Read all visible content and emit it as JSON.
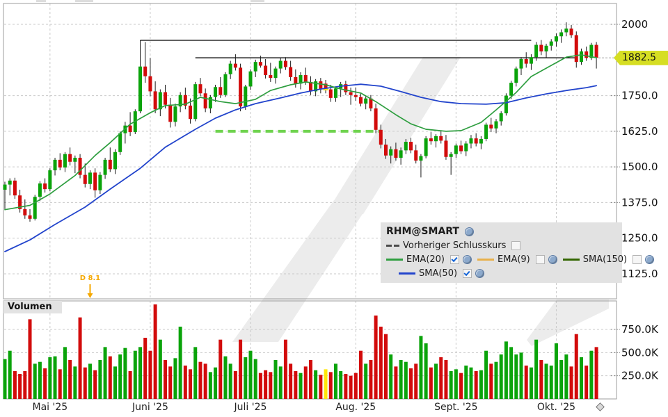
{
  "legend": {
    "symbol": "RHM@SMART",
    "items": [
      {
        "label": "Vorheriger Schlusskurs",
        "checked": false
      },
      {
        "label": "EMA(20)",
        "checked": true
      },
      {
        "label": "EMA(9)",
        "checked": false
      },
      {
        "label": "SMA(150)",
        "checked": false
      },
      {
        "label": "SMA(50)",
        "checked": true
      }
    ]
  },
  "volume_panel": {
    "label": "Volumen"
  },
  "chart_data": {
    "type": "candlestick",
    "title": "RHM@SMART daily chart with volume",
    "x_axis": {
      "month_labels": [
        "Mai '25",
        "Juni '25",
        "Juli '25",
        "Aug. '25",
        "Sept. '25",
        "Okt. '25"
      ],
      "month_start_indices": [
        9,
        29,
        49,
        70,
        90,
        110
      ]
    },
    "y_axis": {
      "tick_prices": [
        2000,
        1750,
        1625,
        1500,
        1375,
        1250,
        1125
      ],
      "tick_labels": [
        "2000",
        "1750.0",
        "1625.0",
        "1500.0",
        "1375.0",
        "1250.0",
        "1125.0"
      ],
      "last_price": 1882.5,
      "last_price_label": "1882.5"
    },
    "volume_axis": {
      "tick_values_k": [
        750,
        500,
        250
      ],
      "tick_labels": [
        "750.0K",
        "500.0K",
        "250.0K"
      ]
    },
    "dividend_marker": {
      "index": 17,
      "label": "D 8.1"
    },
    "highlight_index": 64,
    "resistance_lines": [
      {
        "price": 1944,
        "from_index": 27,
        "to_index": 105
      },
      {
        "price": 1882.5,
        "from_index": 38,
        "to_index": 114
      }
    ],
    "support_dashed_line": {
      "price": 1625,
      "from_index": 42,
      "to_index": 75
    },
    "candles": [
      [
        1420,
        1448,
        1352,
        1438
      ],
      [
        1438,
        1460,
        1400,
        1452
      ],
      [
        1452,
        1462,
        1388,
        1400
      ],
      [
        1400,
        1420,
        1340,
        1352
      ],
      [
        1352,
        1386,
        1318,
        1330
      ],
      [
        1330,
        1352,
        1308,
        1318
      ],
      [
        1318,
        1402,
        1312,
        1395
      ],
      [
        1395,
        1450,
        1380,
        1442
      ],
      [
        1442,
        1460,
        1410,
        1422
      ],
      [
        1422,
        1495,
        1415,
        1488
      ],
      [
        1488,
        1532,
        1470,
        1525
      ],
      [
        1525,
        1548,
        1488,
        1498
      ],
      [
        1498,
        1552,
        1482,
        1545
      ],
      [
        1545,
        1568,
        1505,
        1518
      ],
      [
        1518,
        1540,
        1478,
        1532
      ],
      [
        1532,
        1545,
        1460,
        1472
      ],
      [
        1472,
        1512,
        1428,
        1440
      ],
      [
        1440,
        1488,
        1422,
        1480
      ],
      [
        1480,
        1495,
        1392,
        1418
      ],
      [
        1418,
        1482,
        1405,
        1472
      ],
      [
        1472,
        1532,
        1458,
        1525
      ],
      [
        1525,
        1568,
        1482,
        1492
      ],
      [
        1492,
        1562,
        1475,
        1552
      ],
      [
        1552,
        1625,
        1542,
        1618
      ],
      [
        1618,
        1658,
        1582,
        1645
      ],
      [
        1645,
        1692,
        1608,
        1622
      ],
      [
        1622,
        1702,
        1615,
        1695
      ],
      [
        1695,
        1944,
        1688,
        1852
      ],
      [
        1852,
        1938,
        1795,
        1818
      ],
      [
        1818,
        1882,
        1748,
        1765
      ],
      [
        1765,
        1800,
        1688,
        1702
      ],
      [
        1702,
        1772,
        1678,
        1762
      ],
      [
        1762,
        1788,
        1705,
        1718
      ],
      [
        1718,
        1742,
        1638,
        1658
      ],
      [
        1658,
        1722,
        1642,
        1712
      ],
      [
        1712,
        1762,
        1692,
        1752
      ],
      [
        1752,
        1778,
        1702,
        1715
      ],
      [
        1715,
        1740,
        1652,
        1668
      ],
      [
        1668,
        1798,
        1660,
        1790
      ],
      [
        1790,
        1812,
        1748,
        1758
      ],
      [
        1758,
        1775,
        1692,
        1705
      ],
      [
        1705,
        1752,
        1688,
        1745
      ],
      [
        1745,
        1788,
        1728,
        1780
      ],
      [
        1780,
        1815,
        1742,
        1752
      ],
      [
        1752,
        1832,
        1745,
        1825
      ],
      [
        1825,
        1872,
        1808,
        1862
      ],
      [
        1862,
        1895,
        1838,
        1848
      ],
      [
        1848,
        1862,
        1695,
        1712
      ],
      [
        1712,
        1788,
        1700,
        1782
      ],
      [
        1782,
        1842,
        1770,
        1835
      ],
      [
        1835,
        1876,
        1815,
        1868
      ],
      [
        1868,
        1890,
        1848,
        1855
      ],
      [
        1855,
        1878,
        1810,
        1822
      ],
      [
        1822,
        1865,
        1798,
        1812
      ],
      [
        1812,
        1852,
        1792,
        1845
      ],
      [
        1845,
        1882,
        1828,
        1872
      ],
      [
        1872,
        1885,
        1840,
        1850
      ],
      [
        1850,
        1872,
        1802,
        1815
      ],
      [
        1815,
        1842,
        1778,
        1792
      ],
      [
        1792,
        1832,
        1772,
        1822
      ],
      [
        1822,
        1848,
        1788,
        1798
      ],
      [
        1798,
        1818,
        1752,
        1765
      ],
      [
        1765,
        1808,
        1748,
        1800
      ],
      [
        1800,
        1812,
        1758,
        1772
      ],
      [
        1792,
        1805,
        1758,
        1772
      ],
      [
        1772,
        1788,
        1728,
        1742
      ],
      [
        1742,
        1782,
        1728,
        1775
      ],
      [
        1775,
        1798,
        1745,
        1790
      ],
      [
        1790,
        1802,
        1752,
        1762
      ],
      [
        1762,
        1778,
        1718,
        1752
      ],
      [
        1752,
        1778,
        1732,
        1745
      ],
      [
        1745,
        1760,
        1712,
        1722
      ],
      [
        1722,
        1748,
        1702,
        1740
      ],
      [
        1740,
        1752,
        1695,
        1705
      ],
      [
        1705,
        1722,
        1618,
        1630
      ],
      [
        1630,
        1648,
        1565,
        1578
      ],
      [
        1578,
        1598,
        1528,
        1540
      ],
      [
        1540,
        1572,
        1512,
        1562
      ],
      [
        1562,
        1585,
        1522,
        1532
      ],
      [
        1532,
        1568,
        1508,
        1558
      ],
      [
        1558,
        1598,
        1545,
        1588
      ],
      [
        1588,
        1602,
        1548,
        1558
      ],
      [
        1558,
        1578,
        1512,
        1522
      ],
      [
        1522,
        1545,
        1463,
        1538
      ],
      [
        1538,
        1608,
        1530,
        1600
      ],
      [
        1600,
        1622,
        1578,
        1590
      ],
      [
        1590,
        1615,
        1568,
        1608
      ],
      [
        1608,
        1628,
        1582,
        1592
      ],
      [
        1592,
        1612,
        1525,
        1535
      ],
      [
        1535,
        1552,
        1472,
        1545
      ],
      [
        1545,
        1582,
        1532,
        1575
      ],
      [
        1575,
        1592,
        1545,
        1555
      ],
      [
        1555,
        1590,
        1538,
        1582
      ],
      [
        1582,
        1612,
        1565,
        1600
      ],
      [
        1600,
        1618,
        1572,
        1582
      ],
      [
        1582,
        1608,
        1562,
        1598
      ],
      [
        1598,
        1655,
        1590,
        1648
      ],
      [
        1648,
        1672,
        1622,
        1635
      ],
      [
        1635,
        1668,
        1618,
        1660
      ],
      [
        1660,
        1695,
        1645,
        1688
      ],
      [
        1688,
        1758,
        1680,
        1750
      ],
      [
        1750,
        1802,
        1738,
        1795
      ],
      [
        1795,
        1852,
        1782,
        1845
      ],
      [
        1845,
        1885,
        1822,
        1878
      ],
      [
        1878,
        1902,
        1848,
        1862
      ],
      [
        1862,
        1895,
        1840,
        1885
      ],
      [
        1885,
        1938,
        1872,
        1928
      ],
      [
        1928,
        1945,
        1892,
        1905
      ],
      [
        1905,
        1932,
        1882,
        1925
      ],
      [
        1925,
        1948,
        1908,
        1940
      ],
      [
        1940,
        1968,
        1922,
        1958
      ],
      [
        1958,
        1982,
        1935,
        1972
      ],
      [
        1972,
        2007,
        1958,
        1985
      ],
      [
        1985,
        1998,
        1952,
        1962
      ],
      [
        1962,
        1975,
        1848,
        1868
      ],
      [
        1868,
        1915,
        1858,
        1905
      ],
      [
        1905,
        1922,
        1872,
        1882
      ],
      [
        1882,
        1935,
        1875,
        1928
      ],
      [
        1928,
        1938,
        1845,
        1882.5
      ]
    ],
    "volumes_k": [
      430,
      520,
      300,
      270,
      300,
      860,
      380,
      400,
      330,
      450,
      460,
      320,
      560,
      420,
      350,
      880,
      340,
      380,
      310,
      420,
      560,
      460,
      350,
      480,
      550,
      300,
      520,
      560,
      660,
      520,
      1020,
      640,
      420,
      350,
      440,
      780,
      360,
      320,
      560,
      400,
      380,
      290,
      340,
      640,
      460,
      380,
      300,
      640,
      450,
      520,
      430,
      280,
      310,
      290,
      420,
      350,
      640,
      380,
      300,
      280,
      350,
      420,
      310,
      260,
      320,
      290,
      380,
      300,
      270,
      250,
      280,
      520,
      380,
      420,
      900,
      780,
      700,
      480,
      350,
      420,
      400,
      330,
      380,
      680,
      600,
      340,
      380,
      450,
      420,
      300,
      320,
      280,
      360,
      340,
      300,
      310,
      520,
      380,
      400,
      480,
      620,
      560,
      480,
      500,
      360,
      340,
      640,
      420,
      380,
      360,
      600,
      420,
      480,
      350,
      700,
      450,
      360,
      520,
      560
    ],
    "ema20_points": [
      [
        0,
        1350
      ],
      [
        5,
        1365
      ],
      [
        9,
        1405
      ],
      [
        14,
        1470
      ],
      [
        18,
        1540
      ],
      [
        21,
        1585
      ],
      [
        25,
        1650
      ],
      [
        29,
        1690
      ],
      [
        32,
        1715
      ],
      [
        36,
        1720
      ],
      [
        39,
        1744
      ],
      [
        43,
        1729
      ],
      [
        46,
        1722
      ],
      [
        50,
        1737
      ],
      [
        53,
        1768
      ],
      [
        57,
        1788
      ],
      [
        60,
        1798
      ],
      [
        64,
        1788
      ],
      [
        67,
        1773
      ],
      [
        71,
        1759
      ],
      [
        74,
        1729
      ],
      [
        78,
        1683
      ],
      [
        81,
        1651
      ],
      [
        84,
        1632
      ],
      [
        88,
        1625
      ],
      [
        91,
        1627
      ],
      [
        95,
        1656
      ],
      [
        98,
        1700
      ],
      [
        102,
        1761
      ],
      [
        105,
        1817
      ],
      [
        109,
        1856
      ],
      [
        112,
        1885
      ],
      [
        115,
        1893
      ],
      [
        118,
        1883
      ]
    ],
    "sma50_points": [
      [
        0,
        1203
      ],
      [
        5,
        1244
      ],
      [
        10,
        1298
      ],
      [
        16,
        1359
      ],
      [
        21,
        1422
      ],
      [
        27,
        1495
      ],
      [
        32,
        1569
      ],
      [
        38,
        1632
      ],
      [
        42,
        1671
      ],
      [
        46,
        1700
      ],
      [
        50,
        1722
      ],
      [
        55,
        1742
      ],
      [
        59,
        1759
      ],
      [
        63,
        1773
      ],
      [
        67,
        1783
      ],
      [
        71,
        1790
      ],
      [
        75,
        1783
      ],
      [
        79,
        1764
      ],
      [
        83,
        1744
      ],
      [
        87,
        1729
      ],
      [
        91,
        1722
      ],
      [
        96,
        1720
      ],
      [
        100,
        1725
      ],
      [
        104,
        1742
      ],
      [
        108,
        1756
      ],
      [
        112,
        1768
      ],
      [
        116,
        1778
      ],
      [
        118,
        1785
      ]
    ],
    "colors": {
      "up": "#0aa30a",
      "down": "#d20b0b",
      "wick": "#1a1a1a",
      "ema20": "#2e9e3f",
      "sma50": "#2244cc",
      "ema9": "#e8b04a",
      "sma150": "#336600",
      "prev_close_swatch": "#4a4a4a",
      "support": "#6fd34f",
      "resistance": "#000000",
      "grid": "#c9c9c9",
      "panel_border": "#9c9c9c",
      "price_tag_bg": "#d6de23",
      "highlight": "#ffe70a",
      "dividend": "#f5a800",
      "watermark": "#ececec"
    }
  }
}
